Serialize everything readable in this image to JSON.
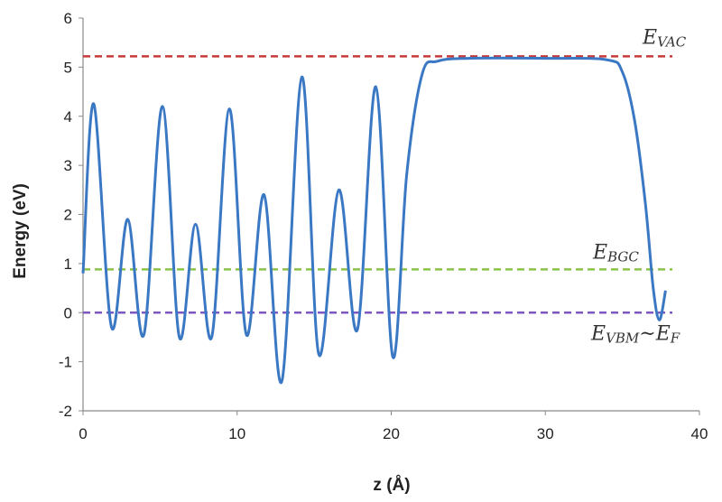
{
  "chart_data": {
    "type": "line",
    "title": "",
    "xlabel": "z (Å)",
    "ylabel": "Energy (eV)",
    "xlim": [
      0,
      40
    ],
    "ylim": [
      -2,
      6
    ],
    "xticks": [
      "0",
      "10",
      "20",
      "30",
      "40"
    ],
    "yticks": [
      "-2",
      "-1",
      "0",
      "1",
      "2",
      "3",
      "4",
      "5",
      "6"
    ],
    "grid": false,
    "legend": "none",
    "series": [
      {
        "color": "#3b78c4",
        "x": [
          0,
          0.7,
          1.85,
          2.9,
          3.95,
          5.15,
          6.25,
          7.3,
          8.35,
          9.5,
          10.6,
          11.75,
          12.9,
          14.2,
          15.3,
          16.6,
          17.8,
          19.0,
          20.1,
          21.0,
          22.0,
          23.0,
          25.0,
          30.0,
          34.0,
          35.0,
          35.8,
          36.5,
          37.0,
          37.4,
          37.8
        ],
        "y": [
          0.8,
          4.25,
          -0.3,
          1.9,
          -0.45,
          4.2,
          -0.5,
          1.8,
          -0.5,
          4.15,
          -0.45,
          2.4,
          -1.4,
          4.8,
          -0.85,
          2.5,
          -0.35,
          4.6,
          -0.9,
          2.8,
          4.85,
          5.12,
          5.18,
          5.18,
          5.15,
          4.9,
          3.9,
          2.2,
          0.5,
          -0.15,
          0.45
        ]
      }
    ],
    "reference_lines": [
      {
        "label_main": "E",
        "label_sub": "VAC",
        "label_suffix": "",
        "y": 5.22,
        "color": "#c83a3a"
      },
      {
        "label_main": "E",
        "label_sub": "BGC",
        "label_suffix": "",
        "y": 0.88,
        "color": "#8bc34a"
      },
      {
        "label_main": "E",
        "label_sub": "VBM",
        "label_suffix": "~E",
        "label_sub2": "F",
        "y": 0.0,
        "color": "#7e57c2"
      }
    ]
  }
}
